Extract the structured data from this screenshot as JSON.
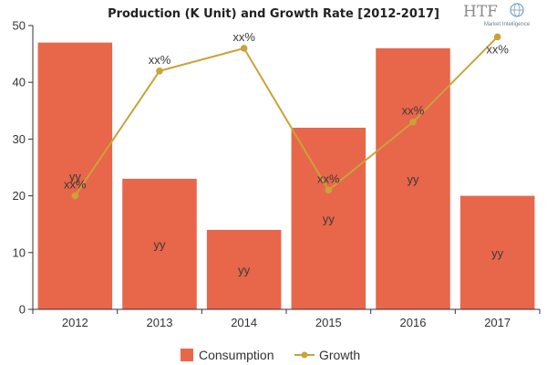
{
  "chart_data": {
    "type": "bar",
    "title": "Production (K Unit) and Growth Rate [2012-2017]",
    "categories": [
      "2012",
      "2013",
      "2014",
      "2015",
      "2016",
      "2017"
    ],
    "series": [
      {
        "name": "Consumption",
        "type": "bar",
        "values": [
          47,
          23,
          14,
          32,
          46,
          20
        ],
        "color": "#e8664a",
        "data_labels": [
          "yy",
          "yy",
          "yy",
          "yy",
          "yy",
          "yy"
        ]
      },
      {
        "name": "Growth",
        "type": "line",
        "values": [
          20,
          42,
          46,
          21,
          33,
          48
        ],
        "color": "#c9a23a",
        "data_labels": [
          "xx%",
          "xx%",
          "xx%",
          "xx%",
          "xx%",
          "xx%"
        ]
      }
    ],
    "y_ticks": [
      "0",
      "10",
      "20",
      "30",
      "40",
      "50"
    ],
    "ylim": [
      0,
      50
    ],
    "xlabel": "",
    "ylabel": "",
    "grid": false,
    "legend_position": "bottom"
  },
  "watermark": {
    "logo_text": "HTF",
    "tagline": "Market Intelligence"
  }
}
